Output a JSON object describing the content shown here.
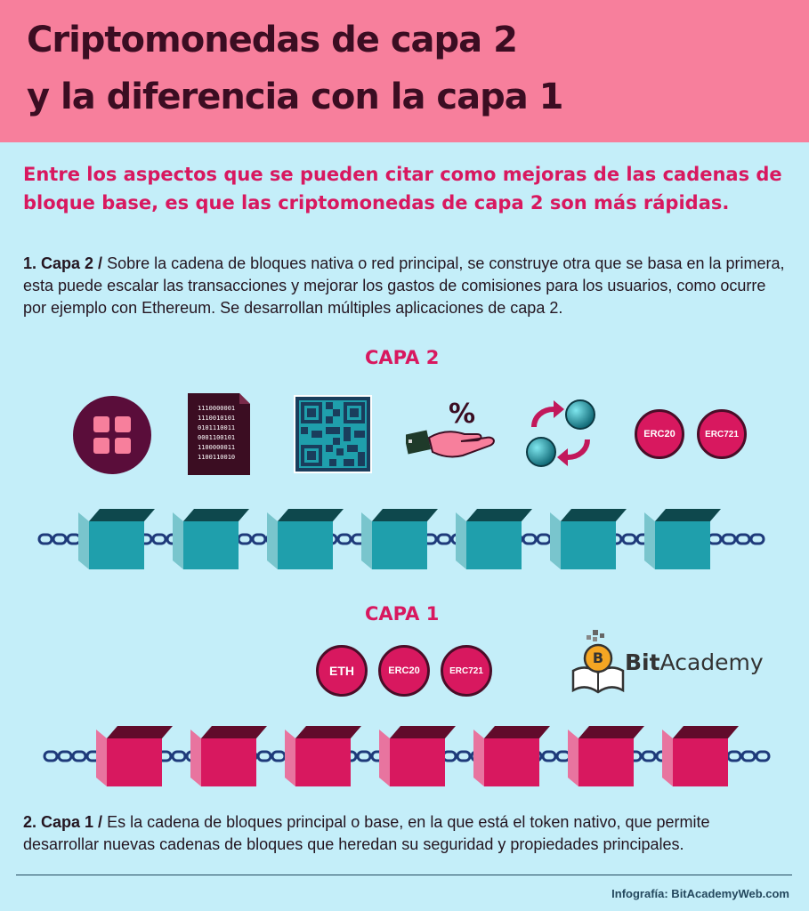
{
  "header": {
    "title_line1": "Criptomonedas de capa 2",
    "title_line2": "y la diferencia con la capa 1",
    "background": "#f77f9c"
  },
  "intro": "Entre los aspectos que se pueden citar como mejoras de las cadenas de bloque base, es que las criptomonedas de capa 2 son más rápidas.",
  "section_capa2": {
    "lead": "1. Capa 2 /",
    "text": "Sobre la cadena de bloques nativa o red principal, se construye otra que se basa  en la primera, esta puede escalar las transacciones y mejorar los gastos de comisiones para los usuarios, como ocurre por ejemplo con Ethereum. Se desarrollan múltiples aplicaciones de capa 2."
  },
  "layer2": {
    "label": "CAPA 2",
    "icons": [
      "apps-grid-icon",
      "binary-document-icon",
      "qr-code-icon",
      "hand-percent-icon",
      "exchange-arrows-icon"
    ],
    "binary_lines": [
      "1110000001",
      "1110010101",
      "0101110011",
      "0001100101",
      "1100000011",
      "1100110010"
    ],
    "percent_symbol": "%",
    "tokens": [
      "ERC20",
      "ERC721"
    ],
    "block_color": "#1f9fac",
    "block_count": 7
  },
  "layer1": {
    "label": "CAPA 1",
    "tokens": [
      "ETH",
      "ERC20",
      "ERC721"
    ],
    "block_color": "#d8185f",
    "block_count": 7
  },
  "logo": {
    "bold": "Bit",
    "regular": "Academy",
    "icon": "bitacademy-book-coin-icon",
    "coin_letter": "B"
  },
  "section_capa1": {
    "lead": "2. Capa 1 /",
    "text": "Es la cadena de bloques principal o base, en la que está el token nativo, que permite desarrollar nuevas cadenas de bloques que heredan su seguridad y propiedades principales."
  },
  "credit": "Infografía: BitAcademyWeb.com",
  "colors": {
    "accent": "#d8185f",
    "background": "#c4eef9",
    "dark": "#3b0d22",
    "chain": "#1e3a7a"
  }
}
